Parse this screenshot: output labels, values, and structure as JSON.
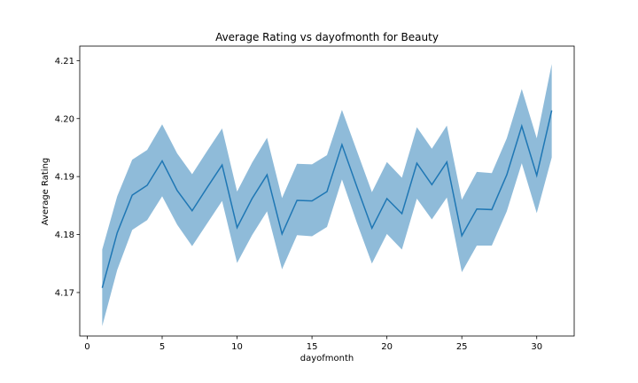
{
  "chart_data": {
    "type": "line",
    "title": "Average Rating vs dayofmonth for Beauty",
    "xlabel": "dayofmonth",
    "ylabel": "Average Rating",
    "xlim": [
      -0.5,
      32.5
    ],
    "ylim": [
      4.1625,
      4.2125
    ],
    "xticks": [
      0,
      5,
      10,
      15,
      20,
      25,
      30
    ],
    "yticks": [
      4.17,
      4.18,
      4.19,
      4.2,
      4.21
    ],
    "ytick_labels": [
      "4.17",
      "4.18",
      "4.19",
      "4.20",
      "4.21"
    ],
    "grid": false,
    "colors": {
      "line": "#1f77b4",
      "band": "#1f77b4",
      "band_opacity": 0.5
    },
    "series": [
      {
        "x": [
          1,
          2,
          3,
          4,
          5,
          6,
          7,
          8,
          9,
          10,
          11,
          12,
          13,
          14,
          15,
          16,
          17,
          18,
          19,
          20,
          21,
          22,
          23,
          24,
          25,
          26,
          27,
          28,
          29,
          30,
          31
        ],
        "values": [
          4.1708,
          4.1803,
          4.1868,
          4.1885,
          4.1927,
          4.1876,
          4.1841,
          4.1881,
          4.192,
          4.1812,
          4.1862,
          4.1903,
          4.1801,
          4.1859,
          4.1858,
          4.1874,
          4.1955,
          4.1882,
          4.1811,
          4.1862,
          4.1836,
          4.1923,
          4.1886,
          4.1925,
          4.1798,
          4.1844,
          4.1843,
          4.1903,
          4.1987,
          4.1902,
          4.2014
        ],
        "lower": [
          4.1642,
          4.1739,
          4.1808,
          4.1825,
          4.1866,
          4.1817,
          4.178,
          4.1819,
          4.1858,
          4.1751,
          4.1799,
          4.184,
          4.174,
          4.1799,
          4.1797,
          4.1813,
          4.1895,
          4.182,
          4.175,
          4.1801,
          4.1774,
          4.1862,
          4.1826,
          4.1864,
          4.1735,
          4.1781,
          4.1781,
          4.184,
          4.1923,
          4.1837,
          4.1933
        ],
        "upper": [
          4.1774,
          4.1866,
          4.1929,
          4.1946,
          4.199,
          4.194,
          4.1904,
          4.1944,
          4.1983,
          4.1874,
          4.1924,
          4.1967,
          4.1863,
          4.1922,
          4.1921,
          4.1937,
          4.2015,
          4.1944,
          4.1873,
          4.1925,
          4.1898,
          4.1985,
          4.1948,
          4.1988,
          4.186,
          4.1908,
          4.1906,
          4.1966,
          4.2051,
          4.1966,
          4.2094
        ]
      }
    ]
  }
}
